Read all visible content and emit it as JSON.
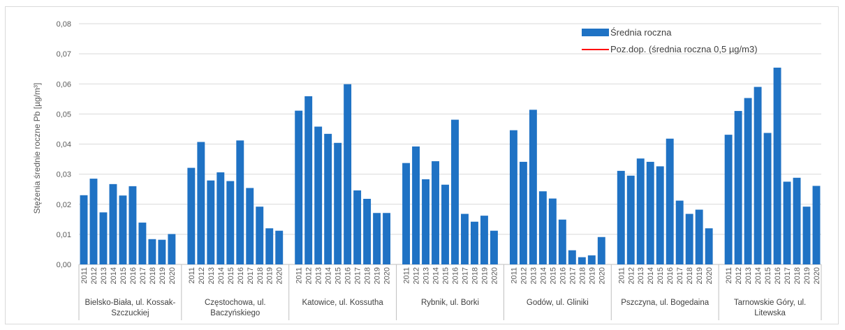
{
  "chart_data": {
    "type": "bar",
    "ylabel": "Stężenia średnie roczne Pb [µg/m³]",
    "ylim": [
      0,
      0.08
    ],
    "yticks": [
      "0,00",
      "0,01",
      "0,02",
      "0,03",
      "0,04",
      "0,05",
      "0,06",
      "0,07",
      "0,08"
    ],
    "grid": true,
    "legend_position": "top-right",
    "legend": [
      {
        "label": "Średnia roczna",
        "color": "#1f72c4",
        "kind": "bar"
      },
      {
        "label": "Poz.dop. (średnia roczna 0,5 µg/m3)",
        "color": "#ff0000",
        "kind": "line"
      }
    ],
    "years": [
      "2011",
      "2012",
      "2013",
      "2014",
      "2015",
      "2016",
      "2017",
      "2018",
      "2019",
      "2020"
    ],
    "groups": [
      {
        "name_lines": [
          "Bielsko-Biała, ul. Kossak-",
          "Szczuckiej"
        ],
        "values": [
          0.023,
          0.0285,
          0.0173,
          0.0267,
          0.0229,
          0.026,
          0.0139,
          0.0084,
          0.0082,
          0.0101
        ]
      },
      {
        "name_lines": [
          "Częstochowa, ul.",
          "Baczyńskiego"
        ],
        "values": [
          0.0321,
          0.0407,
          0.0279,
          0.0306,
          0.0277,
          0.0412,
          0.0254,
          0.0192,
          0.012,
          0.0112
        ]
      },
      {
        "name_lines": [
          "Katowice, ul. Kossutha"
        ],
        "values": [
          0.0511,
          0.0559,
          0.0458,
          0.0434,
          0.0404,
          0.0599,
          0.0246,
          0.0218,
          0.0171,
          0.0171
        ]
      },
      {
        "name_lines": [
          "Rybnik, ul. Borki"
        ],
        "values": [
          0.0337,
          0.0392,
          0.0283,
          0.0343,
          0.0265,
          0.0481,
          0.0168,
          0.0142,
          0.0162,
          0.0112
        ]
      },
      {
        "name_lines": [
          "Godów, ul. Gliniki"
        ],
        "values": [
          0.0446,
          0.0341,
          0.0514,
          0.0243,
          0.0219,
          0.0149,
          0.0047,
          0.0024,
          0.003,
          0.0091
        ]
      },
      {
        "name_lines": [
          "Pszczyna, ul. Bogedaina"
        ],
        "values": [
          0.0311,
          0.0295,
          0.0352,
          0.0341,
          0.0326,
          0.0418,
          0.0212,
          0.0168,
          0.0182,
          0.012
        ]
      },
      {
        "name_lines": [
          "Tarnowskie Góry, ul.",
          "Litewska"
        ],
        "values": [
          0.0431,
          0.051,
          0.0553,
          0.059,
          0.0437,
          0.0654,
          0.0275,
          0.0288,
          0.0192,
          0.0261
        ]
      }
    ]
  }
}
